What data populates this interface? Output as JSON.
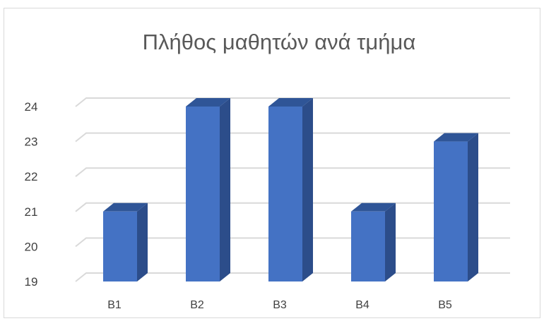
{
  "chart_data": {
    "type": "bar",
    "title": "Πλήθος μαθητών ανά τμήμα",
    "categories": [
      "B1",
      "B2",
      "B3",
      "B4",
      "B5"
    ],
    "values": [
      21,
      24,
      24,
      21,
      23
    ],
    "ylim": [
      19,
      24
    ],
    "yticks": [
      19,
      20,
      21,
      22,
      23,
      24
    ],
    "grid": true,
    "legend": "none",
    "style": "3d-column",
    "colors": {
      "bar_front": "#4472c4",
      "bar_top": "#2f5597",
      "bar_side": "#2c4d8a",
      "grid": "#d9d9d9",
      "text": "#404040",
      "title": "#595959"
    }
  }
}
